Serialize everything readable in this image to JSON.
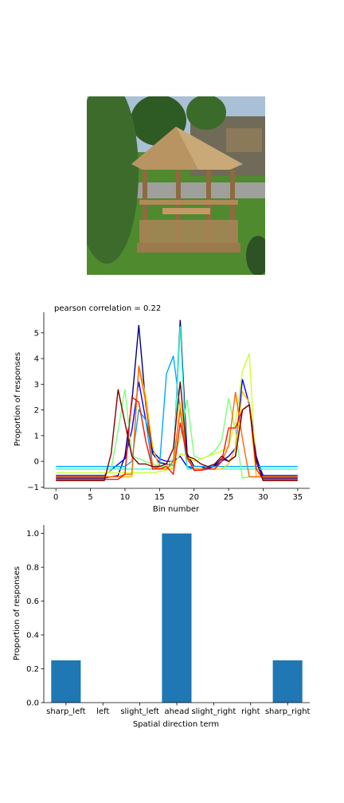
{
  "photo": {
    "subject": "octagonal wooden gazebo with picnic table on lawn"
  },
  "chart_data": [
    {
      "type": "line",
      "title": "pearson correlation = 0.22",
      "xlabel": "Bin number",
      "ylabel": "Proportion of responses",
      "xlim": [
        -1.75,
        36.75
      ],
      "ylim": [
        -1.05,
        5.8
      ],
      "xticks": [
        0,
        5,
        10,
        15,
        20,
        25,
        30,
        35
      ],
      "yticks": [
        -1,
        0,
        1,
        2,
        3,
        4,
        5
      ],
      "grid": false,
      "colormap": "jet",
      "series": [
        {
          "color": "#00007f",
          "x": [
            0,
            7,
            9,
            10,
            11,
            12,
            13,
            14,
            15,
            16,
            17,
            18,
            19,
            20,
            21,
            22,
            23,
            24,
            25,
            26,
            27,
            28,
            29,
            30,
            35
          ],
          "y": [
            -0.65,
            -0.65,
            -0.55,
            0.2,
            2.3,
            5.3,
            2.2,
            0.3,
            -0.05,
            -0.1,
            -0.15,
            5.5,
            0.3,
            -0.2,
            -0.2,
            -0.3,
            -0.15,
            0.1,
            0.0,
            0.2,
            2.0,
            2.2,
            0.2,
            -0.65,
            -0.65
          ]
        },
        {
          "color": "#0000ff",
          "x": [
            0,
            7,
            10,
            11,
            12,
            13,
            14,
            15,
            16,
            17,
            18,
            19,
            20,
            21,
            22,
            23,
            24,
            25,
            26,
            27,
            28,
            29,
            30,
            35
          ],
          "y": [
            -0.55,
            -0.55,
            0.1,
            1.2,
            3.1,
            1.6,
            0.4,
            0.1,
            0.0,
            0.0,
            0.2,
            -0.2,
            -0.3,
            -0.3,
            -0.25,
            -0.2,
            0.0,
            0.2,
            0.5,
            3.2,
            2.2,
            0.1,
            -0.55,
            -0.55
          ]
        },
        {
          "color": "#00a8ff",
          "x": [
            0,
            7,
            10,
            11,
            12,
            13,
            14,
            15,
            16,
            17,
            18,
            19,
            20,
            21,
            22,
            23,
            24,
            25,
            26,
            27,
            28,
            29,
            30,
            35
          ],
          "y": [
            -0.2,
            -0.2,
            -0.2,
            0.0,
            2.0,
            1.6,
            -0.3,
            -0.2,
            3.4,
            4.1,
            2.0,
            -0.2,
            -0.2,
            -0.2,
            -0.2,
            -0.2,
            -0.2,
            -0.2,
            -0.2,
            -0.2,
            -0.2,
            -0.2,
            -0.2,
            -0.2
          ]
        },
        {
          "color": "#29ffce",
          "x": [
            0,
            7,
            10,
            11,
            12,
            13,
            14,
            15,
            16,
            17,
            18,
            19,
            20,
            21,
            22,
            23,
            24,
            25,
            26,
            27,
            28,
            29,
            30,
            35
          ],
          "y": [
            -0.3,
            -0.3,
            -0.3,
            -0.3,
            -0.3,
            -0.3,
            -0.3,
            -0.3,
            -0.3,
            -0.1,
            5.25,
            -0.3,
            -0.3,
            -0.3,
            -0.3,
            -0.3,
            -0.3,
            -0.3,
            -0.3,
            -0.3,
            -0.3,
            -0.3,
            -0.3,
            -0.3
          ]
        },
        {
          "color": "#7dff7a",
          "x": [
            0,
            7,
            8,
            9,
            10,
            11,
            12,
            13,
            14,
            15,
            16,
            17,
            18,
            19,
            20,
            21,
            22,
            23,
            24,
            25,
            26,
            27,
            28,
            29,
            30,
            35
          ],
          "y": [
            -0.6,
            -0.6,
            -0.3,
            1.2,
            2.8,
            0.2,
            0.1,
            0.0,
            -0.1,
            -0.2,
            -0.2,
            0.1,
            0.9,
            2.4,
            0.2,
            0.1,
            0.2,
            0.4,
            0.8,
            2.45,
            1.2,
            -0.65,
            -0.6,
            -0.6,
            -0.6,
            -0.6
          ]
        },
        {
          "color": "#ceff29",
          "x": [
            0,
            7,
            10,
            11,
            12,
            13,
            14,
            15,
            16,
            17,
            18,
            19,
            20,
            21,
            22,
            23,
            24,
            25,
            26,
            27,
            28,
            29,
            30,
            35
          ],
          "y": [
            -0.45,
            -0.45,
            -0.45,
            -0.45,
            -0.45,
            -0.45,
            -0.45,
            -0.4,
            -0.35,
            -0.2,
            0.3,
            0.2,
            0.0,
            0.1,
            0.2,
            0.3,
            0.4,
            0.6,
            1.5,
            3.5,
            4.2,
            -0.6,
            -0.6,
            -0.6
          ]
        },
        {
          "color": "#ffc400",
          "x": [
            0,
            7,
            10,
            11,
            12,
            13,
            14,
            15,
            16,
            17,
            18,
            19,
            20,
            21,
            22,
            23,
            24,
            25,
            26,
            27,
            28,
            29,
            30,
            35
          ],
          "y": [
            -0.6,
            -0.6,
            -0.6,
            -0.6,
            3.75,
            2.55,
            0.6,
            -0.3,
            -0.3,
            -0.3,
            2.3,
            0.2,
            -0.3,
            -0.3,
            -0.3,
            -0.3,
            -0.3,
            -0.1,
            0.5,
            2.7,
            2.3,
            -0.6,
            -0.6,
            -0.6
          ]
        },
        {
          "color": "#ff6800",
          "x": [
            0,
            7,
            9,
            10,
            11,
            12,
            13,
            14,
            15,
            16,
            17,
            18,
            19,
            20,
            21,
            22,
            23,
            24,
            25,
            26,
            27,
            28,
            29,
            30,
            35
          ],
          "y": [
            -0.6,
            -0.6,
            -0.6,
            -0.5,
            -0.5,
            3.7,
            2.3,
            -0.2,
            -0.3,
            -0.3,
            0.0,
            2.0,
            0.1,
            -0.3,
            -0.3,
            -0.3,
            -0.3,
            0.0,
            0.6,
            2.7,
            0.9,
            -0.6,
            -0.6,
            -0.6,
            -0.6
          ]
        },
        {
          "color": "#ff1300",
          "x": [
            0,
            7,
            9,
            10,
            11,
            12,
            13,
            14,
            15,
            16,
            17,
            18,
            19,
            20,
            21,
            22,
            23,
            24,
            25,
            26,
            27,
            28,
            29,
            30,
            35
          ],
          "y": [
            -0.7,
            -0.7,
            -0.7,
            -0.5,
            2.5,
            2.3,
            0.8,
            -0.3,
            -0.3,
            -0.2,
            -0.5,
            1.5,
            0.2,
            -0.35,
            -0.35,
            -0.3,
            -0.3,
            0.0,
            1.3,
            1.3,
            2.0,
            2.2,
            -0.3,
            -0.7,
            -0.7
          ]
        },
        {
          "color": "#7f0000",
          "x": [
            0,
            7,
            8,
            9,
            10,
            11,
            12,
            13,
            14,
            15,
            16,
            17,
            18,
            19,
            20,
            21,
            22,
            23,
            24,
            25,
            26,
            27,
            28,
            29,
            30,
            35
          ],
          "y": [
            -0.75,
            -0.75,
            0.3,
            2.8,
            1.5,
            0.2,
            -0.1,
            -0.1,
            -0.2,
            -0.2,
            -0.1,
            0.5,
            3.1,
            0.2,
            0.1,
            -0.1,
            -0.2,
            -0.1,
            0.2,
            0.0,
            0.2,
            2.0,
            2.2,
            0.0,
            -0.75,
            -0.75
          ]
        }
      ]
    },
    {
      "type": "bar",
      "xlabel": "Spatial direction term",
      "ylabel": "Proportion of responses",
      "categories": [
        "sharp_left",
        "left",
        "slight_left",
        "ahead",
        "slight_right",
        "right",
        "sharp_right"
      ],
      "values": [
        0.25,
        0.0,
        0.0,
        1.0,
        0.0,
        0.0,
        0.25
      ],
      "ylim": [
        0,
        1.05
      ],
      "yticks": [
        0.0,
        0.2,
        0.4,
        0.6,
        0.8,
        1.0
      ],
      "grid": false,
      "bar_color": "#1f77b4"
    }
  ]
}
